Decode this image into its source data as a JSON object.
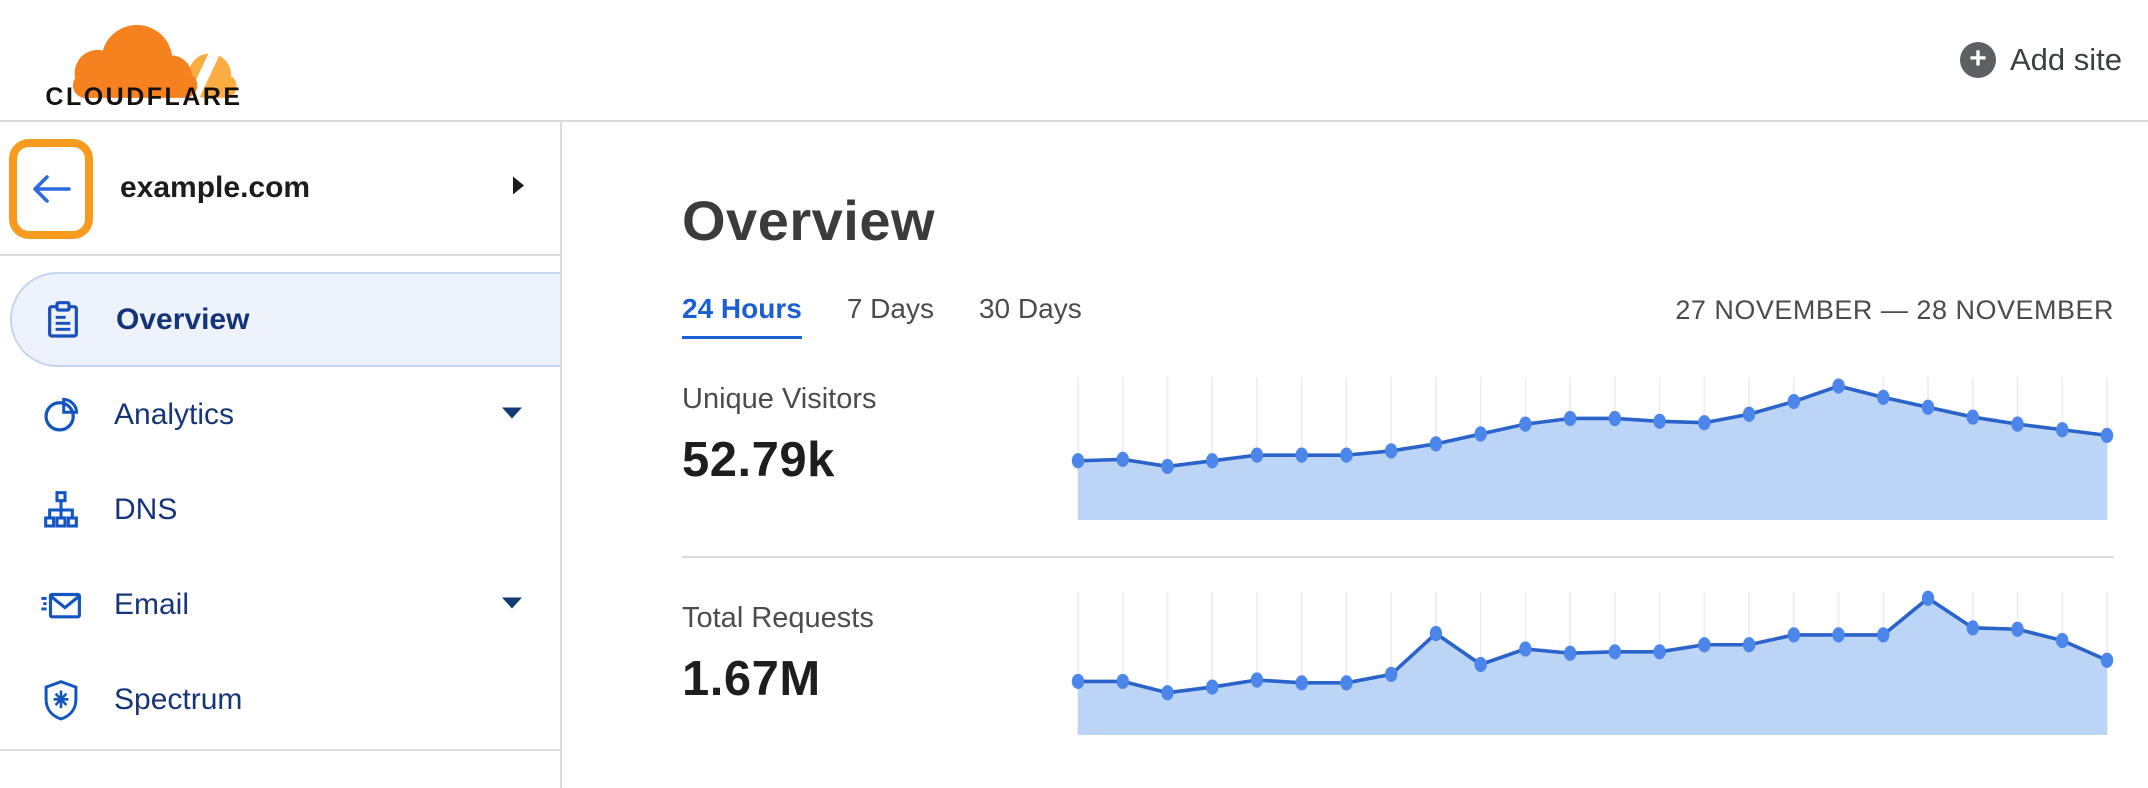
{
  "header": {
    "logo_text": "CLOUDFLARE",
    "add_site_label": "Add site"
  },
  "sidebar": {
    "site_name": "example.com",
    "items": [
      {
        "label": "Overview",
        "icon": "clipboard-icon",
        "active": true,
        "caret": false
      },
      {
        "label": "Analytics",
        "icon": "pie-chart-icon",
        "active": false,
        "caret": true
      },
      {
        "label": "DNS",
        "icon": "sitemap-icon",
        "active": false,
        "caret": false
      },
      {
        "label": "Email",
        "icon": "envelope-icon",
        "active": false,
        "caret": true
      },
      {
        "label": "Spectrum",
        "icon": "shield-icon",
        "active": false,
        "caret": false
      }
    ]
  },
  "main": {
    "title": "Overview",
    "tabs": [
      {
        "label": "24 Hours",
        "active": true
      },
      {
        "label": "7 Days",
        "active": false
      },
      {
        "label": "30 Days",
        "active": false
      }
    ],
    "date_range": "27 NOVEMBER — 28 NOVEMBER",
    "metrics": [
      {
        "label": "Unique Visitors",
        "value": "52.79k"
      },
      {
        "label": "Total Requests",
        "value": "1.67M"
      }
    ]
  },
  "chart_data": [
    {
      "type": "area",
      "title": "Unique Visitors",
      "total_value": "52.79k",
      "x_range_label": "27 NOVEMBER — 28 NOVEMBER",
      "points_pct": [
        42,
        43,
        38,
        42,
        46,
        46,
        46,
        49,
        54,
        61,
        68,
        72,
        72,
        70,
        69,
        75,
        84,
        95,
        87,
        80,
        73,
        68,
        64,
        60
      ],
      "grid": "vertical",
      "legend": "none",
      "colors": {
        "line": "#2a63c9",
        "dot": "#4c86ea",
        "fill": "#bcd4f6",
        "grid": "#e9edf4"
      }
    },
    {
      "type": "area",
      "title": "Total Requests",
      "total_value": "1.67M",
      "x_range_label": "27 NOVEMBER — 28 NOVEMBER",
      "points_pct": [
        38,
        38,
        30,
        34,
        39,
        37,
        37,
        43,
        72,
        50,
        61,
        58,
        59,
        59,
        64,
        64,
        71,
        71,
        71,
        97,
        76,
        75,
        67,
        53
      ],
      "grid": "vertical",
      "legend": "none",
      "colors": {
        "line": "#2a63c9",
        "dot": "#4c86ea",
        "fill": "#bcd4f6",
        "grid": "#e9edf4"
      }
    }
  ],
  "icons": {
    "add": "plus-circle-icon",
    "back": "arrow-left-icon",
    "site_expand": "chevron-right-icon",
    "overview": "clipboard-icon",
    "analytics": "pie-chart-icon",
    "dns": "sitemap-icon",
    "email": "envelope-icon",
    "spectrum": "shield-icon",
    "submenu": "caret-down-icon"
  },
  "colors": {
    "brand_orange": "#f6821f",
    "brand_orange_light": "#fbad41",
    "annotation_highlight": "#f79b1e",
    "active_tab_blue": "#1a5fd3",
    "nav_icon_blue": "#1355c0",
    "nav_text_navy": "#16367a",
    "active_item_bg": "#edf2fb",
    "active_item_border": "#c3d5f1",
    "divider_gray": "#dcdcdc",
    "text_gray": "#4c4c4c",
    "text_dark": "#1e1e1e"
  }
}
